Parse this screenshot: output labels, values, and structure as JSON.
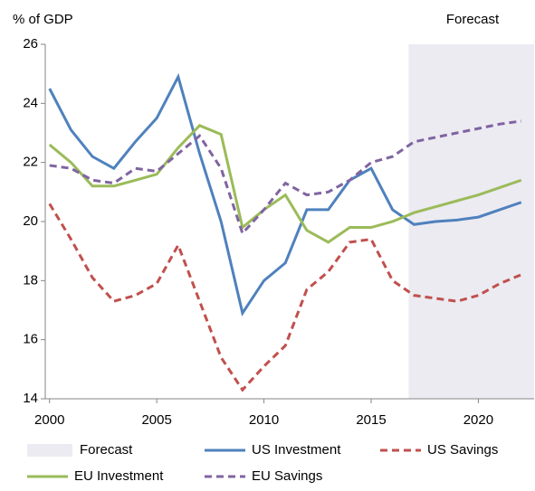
{
  "chart_data": {
    "type": "line",
    "ylabel": "% of GDP",
    "annotation": "Forecast",
    "forecast": {
      "label": "Forecast",
      "start": 2016.75,
      "color": "#ecebf2"
    },
    "x": [
      2000,
      2001,
      2002,
      2003,
      2004,
      2005,
      2006,
      2007,
      2008,
      2009,
      2010,
      2011,
      2012,
      2013,
      2014,
      2015,
      2016,
      2017,
      2018,
      2019,
      2020,
      2021,
      2022
    ],
    "series": [
      {
        "name": "US Investment",
        "color": "#4f81bd",
        "dashed": false,
        "values": [
          24.5,
          23.1,
          22.2,
          21.8,
          22.7,
          23.5,
          24.9,
          22.3,
          20.0,
          16.9,
          18.0,
          18.6,
          20.4,
          20.4,
          21.4,
          21.8,
          20.4,
          19.9,
          20.0,
          20.05,
          20.15,
          20.4,
          20.65
        ]
      },
      {
        "name": "US Savings",
        "color": "#c0504d",
        "dashed": true,
        "values": [
          20.6,
          19.4,
          18.1,
          17.3,
          17.5,
          17.9,
          19.2,
          17.3,
          15.4,
          14.3,
          15.1,
          15.8,
          17.7,
          18.3,
          19.3,
          19.4,
          18.0,
          17.5,
          17.4,
          17.3,
          17.5,
          17.9,
          18.2
        ]
      },
      {
        "name": "EU Investment",
        "color": "#9bbb59",
        "dashed": false,
        "values": [
          22.6,
          22.0,
          21.2,
          21.2,
          21.4,
          21.6,
          22.5,
          23.25,
          22.95,
          19.8,
          20.4,
          20.9,
          19.7,
          19.3,
          19.8,
          19.8,
          20.0,
          20.3,
          20.5,
          20.7,
          20.9,
          21.15,
          21.4
        ]
      },
      {
        "name": "EU Savings",
        "color": "#8064a2",
        "dashed": true,
        "values": [
          21.9,
          21.8,
          21.4,
          21.3,
          21.8,
          21.7,
          22.3,
          22.9,
          21.8,
          19.6,
          20.4,
          21.3,
          20.9,
          21.0,
          21.4,
          22.0,
          22.2,
          22.7,
          22.85,
          23.0,
          23.15,
          23.3,
          23.4
        ]
      }
    ],
    "xlim": [
      1999.8,
      2022.6
    ],
    "xticks": [
      2000,
      2005,
      2010,
      2015,
      2020
    ],
    "ylim": [
      14,
      26
    ],
    "yticks": [
      14,
      16,
      18,
      20,
      22,
      24,
      26
    ],
    "grid": false
  }
}
